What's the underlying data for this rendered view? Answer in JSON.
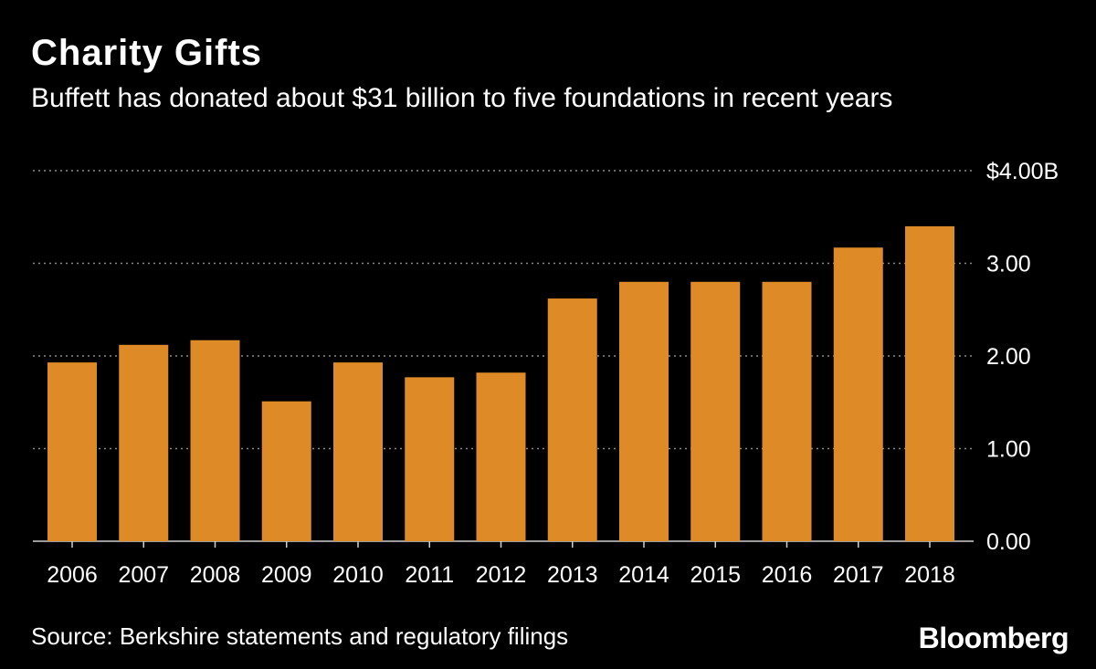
{
  "header": {
    "title": "Charity Gifts",
    "subtitle": "Buffett has donated about $31 billion to five foundations in recent years"
  },
  "footer": {
    "source": "Source: Berkshire statements and regulatory filings",
    "brand": "Bloomberg"
  },
  "colors": {
    "background": "#000000",
    "bar": "#DD8A27",
    "grid": "#8a8a8a",
    "text": "#ffffff"
  },
  "chart_data": {
    "type": "bar",
    "title": "Charity Gifts",
    "subtitle": "Buffett has donated about $31 billion to five foundations in recent years",
    "xlabel": "",
    "ylabel": "",
    "categories": [
      "2006",
      "2007",
      "2008",
      "2009",
      "2010",
      "2011",
      "2012",
      "2013",
      "2014",
      "2015",
      "2016",
      "2017",
      "2018"
    ],
    "values": [
      1.93,
      2.12,
      2.17,
      1.51,
      1.93,
      1.77,
      1.82,
      2.62,
      2.8,
      2.8,
      2.8,
      3.17,
      3.4
    ],
    "units": "billion USD",
    "ylim": [
      0,
      4
    ],
    "yticks": [
      0,
      1,
      2,
      3,
      4
    ],
    "ytick_labels": [
      "0.00",
      "1.00",
      "2.00",
      "3.00",
      "$4.00B"
    ],
    "grid": true,
    "y_axis_side": "right"
  }
}
